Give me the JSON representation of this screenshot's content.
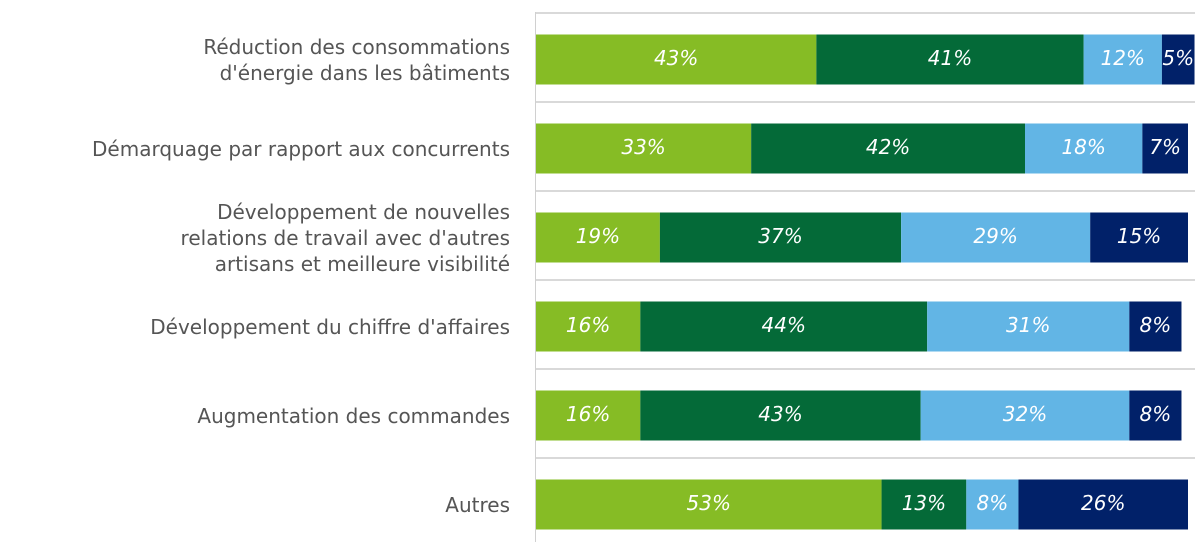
{
  "chart_data": {
    "type": "stacked-bar-horizontal",
    "categories": [
      "Réduction des consommations\nd'énergie dans les bâtiments",
      "Démarquage par rapport aux concurrents",
      "Développement de nouvelles\nrelations de travail avec d'autres\nartisans et meilleure visibilité",
      "Développement du chiffre d'affaires",
      "Augmentation des commandes",
      "Autres"
    ],
    "series": [
      {
        "color": "#86bc25",
        "values": [
          43,
          33,
          19,
          16,
          16,
          53
        ],
        "value_labels": [
          "43%",
          "33%",
          "19%",
          "16%",
          "16%",
          "53%"
        ]
      },
      {
        "color": "#046a38",
        "values": [
          41,
          42,
          37,
          44,
          43,
          13
        ],
        "value_labels": [
          "41%",
          "42%",
          "37%",
          "44%",
          "43%",
          "13%"
        ]
      },
      {
        "color": "#62b5e5",
        "values": [
          12,
          18,
          29,
          31,
          32,
          8
        ],
        "value_labels": [
          "12%",
          "18%",
          "29%",
          "31%",
          "32%",
          "8%"
        ]
      },
      {
        "color": "#012169",
        "values": [
          5,
          7,
          15,
          8,
          8,
          26
        ],
        "value_labels": [
          "5%",
          "7%",
          "15%",
          "8%",
          "8%",
          "26%"
        ]
      }
    ],
    "xlim": [
      0,
      100
    ]
  }
}
